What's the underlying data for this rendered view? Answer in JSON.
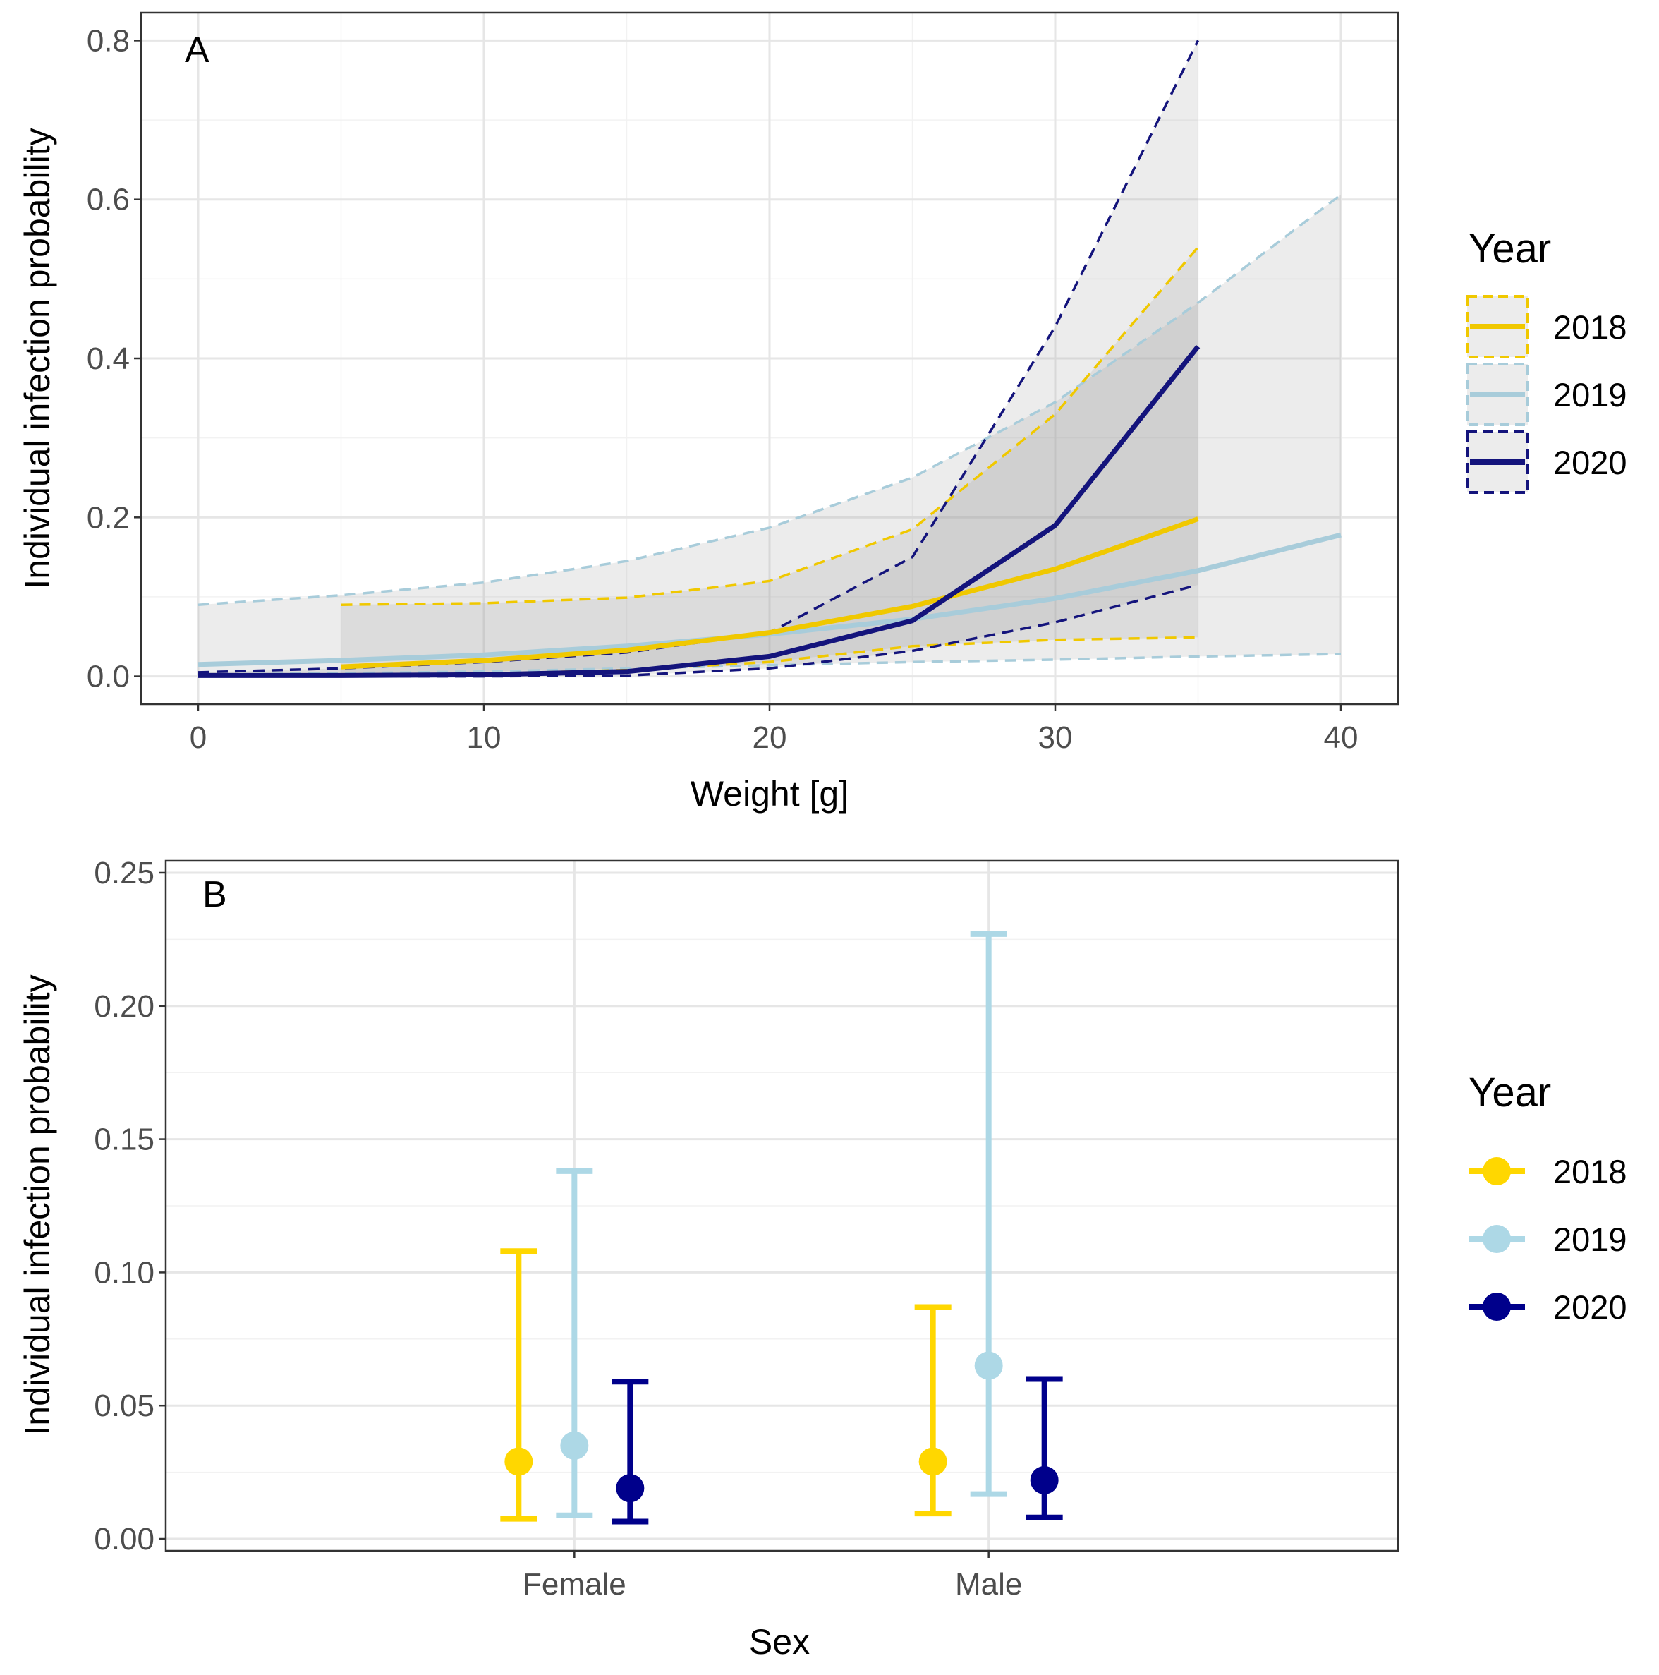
{
  "colors": {
    "2018": "#F0C800",
    "2019": "#A8CCDA",
    "2020": "#14147C",
    "ribbon": "#9e9e9e",
    "grid_major": "#e6e6e6",
    "grid_minor": "#f2f2f2",
    "border": "#333333"
  },
  "point_colors": {
    "2018": "#FFD700",
    "2019": "#ADD8E6",
    "2020": "#00008B"
  },
  "chart_data": [
    {
      "panel": "A",
      "type": "line",
      "xlabel": "Weight [g]",
      "ylabel": "Individual infection probability",
      "xlim": [
        -2,
        42
      ],
      "ylim": [
        -0.035,
        0.835
      ],
      "xticks": [
        0,
        10,
        20,
        30,
        40
      ],
      "yticks": [
        0.0,
        0.2,
        0.4,
        0.6,
        0.8
      ],
      "ytick_labels": [
        "0.0",
        "0.2",
        "0.4",
        "0.6",
        "0.8"
      ],
      "grid": true,
      "legend": {
        "title": "Year",
        "position": "right",
        "entries": [
          "2018",
          "2019",
          "2020"
        ]
      },
      "series": [
        {
          "name": "2019",
          "x": [
            0,
            5,
            10,
            15,
            20,
            25,
            30,
            35,
            40
          ],
          "y": [
            0.015,
            0.02,
            0.027,
            0.038,
            0.053,
            0.072,
            0.098,
            0.133,
            0.178
          ],
          "lower": [
            0.002,
            0.004,
            0.006,
            0.01,
            0.014,
            0.018,
            0.021,
            0.025,
            0.028
          ],
          "upper": [
            0.09,
            0.102,
            0.118,
            0.145,
            0.187,
            0.25,
            0.345,
            0.47,
            0.606
          ]
        },
        {
          "name": "2018",
          "x": [
            5,
            10,
            15,
            20,
            25,
            30,
            35
          ],
          "y": [
            0.012,
            0.02,
            0.033,
            0.055,
            0.088,
            0.135,
            0.198
          ],
          "lower": [
            0.001,
            0.003,
            0.008,
            0.018,
            0.038,
            0.046,
            0.049
          ],
          "upper": [
            0.09,
            0.092,
            0.099,
            0.12,
            0.185,
            0.33,
            0.54
          ]
        },
        {
          "name": "2020",
          "x": [
            0,
            5,
            10,
            15,
            20,
            25,
            30,
            35
          ],
          "y": [
            0.001,
            0.001,
            0.002,
            0.006,
            0.025,
            0.07,
            0.19,
            0.415
          ],
          "lower": [
            0.0,
            0.0,
            0.0,
            0.001,
            0.01,
            0.032,
            0.068,
            0.115
          ],
          "upper": [
            0.005,
            0.01,
            0.018,
            0.03,
            0.055,
            0.15,
            0.44,
            0.8
          ]
        }
      ]
    },
    {
      "panel": "B",
      "type": "errorbar",
      "xlabel": "Sex",
      "ylabel": "Individual infection probability",
      "categories": [
        "Female",
        "Male"
      ],
      "ylim": [
        -0.0045,
        0.2545
      ],
      "yticks": [
        0.0,
        0.05,
        0.1,
        0.15,
        0.2,
        0.25
      ],
      "ytick_labels": [
        "0.00",
        "0.05",
        "0.10",
        "0.15",
        "0.20",
        "0.25"
      ],
      "grid": true,
      "legend": {
        "title": "Year",
        "position": "right",
        "entries": [
          "2018",
          "2019",
          "2020"
        ]
      },
      "series": [
        {
          "name": "2018",
          "values": [
            0.029,
            0.029
          ],
          "lower": [
            0.0075,
            0.0095
          ],
          "upper": [
            0.108,
            0.087
          ]
        },
        {
          "name": "2019",
          "values": [
            0.035,
            0.065
          ],
          "lower": [
            0.0088,
            0.0168
          ],
          "upper": [
            0.138,
            0.227
          ]
        },
        {
          "name": "2020",
          "values": [
            0.019,
            0.022
          ],
          "lower": [
            0.0065,
            0.008
          ],
          "upper": [
            0.059,
            0.06
          ]
        }
      ]
    }
  ]
}
